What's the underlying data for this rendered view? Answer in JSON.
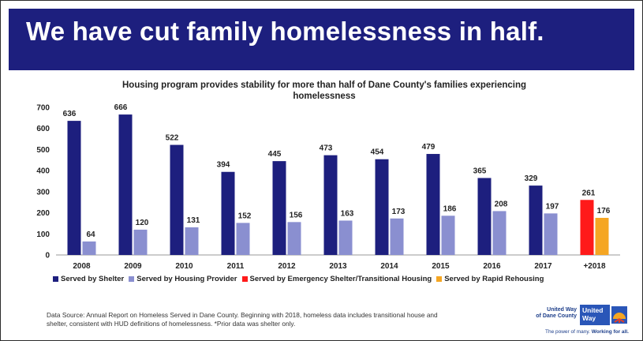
{
  "header": {
    "title": "We have cut family homelessness in half."
  },
  "chart_data": {
    "type": "bar",
    "title": "Housing program provides stability for more than half of Dane County's families experiencing homelessness",
    "categories": [
      "2008",
      "2009",
      "2010",
      "2011",
      "2012",
      "2013",
      "2014",
      "2015",
      "2016",
      "2017",
      "+2018"
    ],
    "series": [
      {
        "name": "Served by Shelter",
        "color": "#1d1f7e",
        "values": [
          636,
          666,
          522,
          394,
          445,
          473,
          454,
          479,
          365,
          329,
          null
        ]
      },
      {
        "name": "Served by Housing Provider",
        "color": "#8a8fd0",
        "values": [
          64,
          120,
          131,
          152,
          156,
          163,
          173,
          186,
          208,
          197,
          null
        ]
      },
      {
        "name": "Served by Emergency Shelter/Transitional Housing",
        "color": "#ff1a1a",
        "values": [
          null,
          null,
          null,
          null,
          null,
          null,
          null,
          null,
          null,
          null,
          261
        ]
      },
      {
        "name": "Served by Rapid Rehousing",
        "color": "#f5a623",
        "values": [
          null,
          null,
          null,
          null,
          null,
          null,
          null,
          null,
          null,
          null,
          176
        ]
      }
    ],
    "yticks": [
      0,
      100,
      200,
      300,
      400,
      500,
      600,
      700
    ],
    "ylim": [
      0,
      700
    ],
    "grid": false,
    "legend": "bottom"
  },
  "footer": {
    "source_line1": "Data Source: Annual Report on Homeless Served in Dane County.  Beginning with 2018, homeless data includes transitional house and",
    "source_line2": "shelter, consistent with HUD definitions of homelessness.  *Prior data was shelter only."
  },
  "logo": {
    "org_line1": "United Way",
    "org_line2": "of Dane County",
    "box_line1": "United",
    "box_line2": "Way",
    "tagline_plain": "The power of many. ",
    "tagline_bold": "Working for all."
  }
}
